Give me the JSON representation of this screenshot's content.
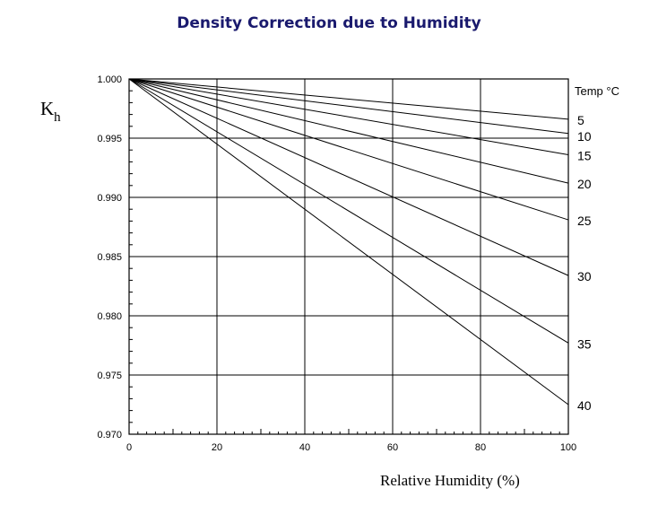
{
  "chart_data": {
    "type": "line",
    "title": "Density Correction due to Humidity",
    "xlabel": "Relative Humidity (%)",
    "ylabel": {
      "main": "K",
      "sub": "h"
    },
    "xlim": [
      0,
      100
    ],
    "ylim": [
      0.97,
      1.0
    ],
    "x_ticks": [
      0,
      20,
      40,
      60,
      80,
      100
    ],
    "x_tick_labels": [
      "0",
      "20",
      "40",
      "60",
      "80",
      "100"
    ],
    "y_ticks": [
      1.0,
      0.995,
      0.99,
      0.985,
      0.98,
      0.975,
      0.97
    ],
    "y_tick_labels": [
      "1.000",
      "0.995",
      "0.990",
      "0.985",
      "0.980",
      "0.975",
      "0.970"
    ],
    "grid": true,
    "legend_title": "Temp °C",
    "legend_placement": "right",
    "line_color": "#000000",
    "series": [
      {
        "name": "5",
        "x": [
          0,
          100
        ],
        "y": [
          1.0,
          0.9966
        ]
      },
      {
        "name": "10",
        "x": [
          0,
          100
        ],
        "y": [
          1.0,
          0.9954
        ]
      },
      {
        "name": "15",
        "x": [
          0,
          100
        ],
        "y": [
          1.0,
          0.9936
        ]
      },
      {
        "name": "20",
        "x": [
          0,
          100
        ],
        "y": [
          1.0,
          0.9912
        ]
      },
      {
        "name": "25",
        "x": [
          0,
          100
        ],
        "y": [
          1.0,
          0.9881
        ]
      },
      {
        "name": "30",
        "x": [
          0,
          100
        ],
        "y": [
          1.0,
          0.9834
        ]
      },
      {
        "name": "35",
        "x": [
          0,
          100
        ],
        "y": [
          1.0,
          0.9777
        ]
      },
      {
        "name": "40",
        "x": [
          0,
          100
        ],
        "y": [
          1.0,
          0.9725
        ]
      }
    ]
  }
}
